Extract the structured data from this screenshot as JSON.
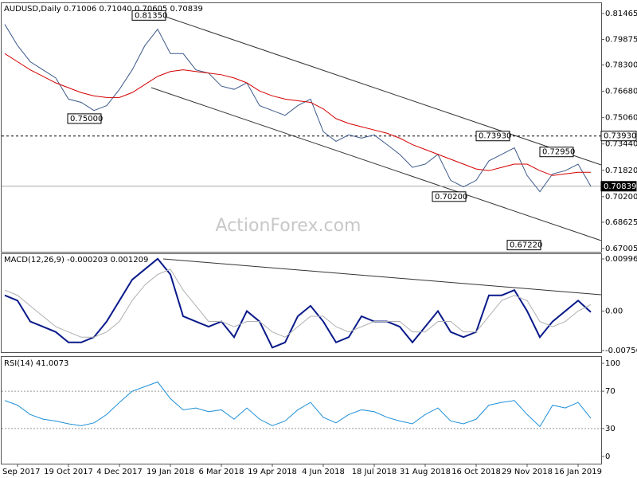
{
  "chart_data": [
    {
      "type": "line",
      "title": "AUDUSD,Daily  0.71006 0.71040 0.70605 0.70839",
      "watermark": "ActionForex.com",
      "categories": [
        null,
        "5 Sep 2017",
        null,
        null,
        null,
        "19 Oct 2017",
        null,
        null,
        null,
        "4 Dec 2017",
        null,
        null,
        null,
        "19 Jan 2018",
        null,
        null,
        null,
        "6 Mar 2018",
        null,
        null,
        null,
        "19 Apr 2018",
        null,
        null,
        null,
        "4 Jun 2018",
        null,
        null,
        null,
        "18 Jul 2018",
        null,
        null,
        null,
        "31 Aug 2018",
        null,
        null,
        null,
        "16 Oct 2018",
        null,
        null,
        null,
        "29 Nov 2018",
        null,
        null,
        null,
        "16 Jan 2019",
        null
      ],
      "series": [
        {
          "color": "#3d5a8a",
          "values": [
            0.808,
            0.795,
            0.785,
            0.78,
            0.775,
            0.762,
            0.76,
            0.755,
            0.758,
            0.768,
            0.78,
            0.795,
            0.805,
            0.79,
            0.79,
            0.78,
            0.778,
            0.77,
            0.768,
            0.772,
            0.758,
            0.755,
            0.752,
            0.758,
            0.762,
            0.742,
            0.736,
            0.74,
            0.738,
            0.74,
            0.734,
            0.728,
            0.72,
            0.722,
            0.728,
            0.712,
            0.708,
            0.712,
            0.724,
            0.728,
            0.732,
            0.715,
            0.705,
            0.716,
            0.718,
            0.722,
            0.70839
          ]
        },
        {
          "color": "#d40000",
          "values": [
            0.79,
            0.785,
            0.78,
            0.776,
            0.772,
            0.769,
            0.766,
            0.764,
            0.763,
            0.763,
            0.766,
            0.771,
            0.776,
            0.779,
            0.78,
            0.779,
            0.778,
            0.777,
            0.775,
            0.772,
            0.767,
            0.764,
            0.762,
            0.761,
            0.76,
            0.756,
            0.75,
            0.747,
            0.745,
            0.743,
            0.741,
            0.738,
            0.734,
            0.731,
            0.728,
            0.725,
            0.722,
            0.719,
            0.718,
            0.72,
            0.722,
            0.722,
            0.718,
            0.715,
            0.716,
            0.717,
            0.717
          ]
        }
      ],
      "ylim": [
        0.66809,
        0.82102
      ],
      "yticks": [
        0.81465,
        0.79875,
        {
          "value": 0.783,
          "label": "0.78300"
        },
        {
          "value": 0.7668,
          "label": "0.76680"
        },
        {
          "value": 0.7506,
          "label": "0.75060"
        },
        {
          "value": 0.7344,
          "label": "0.73440"
        },
        {
          "value": 0.7182,
          "label": "0.71820"
        },
        {
          "value": 0.702,
          "label": "0.70200"
        },
        0.68625,
        0.67005
      ],
      "hlines": [
        {
          "value": 0.7393,
          "label": "0.73930",
          "style": "dotted"
        },
        {
          "value": 0.70839,
          "label": "0.70839",
          "style": "solid"
        }
      ],
      "annotations": [
        {
          "value": 0.8135,
          "label": "0.81350"
        },
        {
          "value": 0.75,
          "label": "0.75000"
        },
        {
          "value": 0.7393,
          "label": "0.73930"
        },
        {
          "value": 0.7295,
          "label": "0.72950"
        },
        {
          "value": 0.702,
          "label": "0.70200"
        },
        {
          "value": 0.6722,
          "label": "0.67220"
        }
      ]
    },
    {
      "type": "line",
      "title": "MACD(12,26,9) -0.000203 0.001209",
      "series": [
        {
          "color": "#0a1a8a",
          "values": [
            0.003,
            0.002,
            -0.002,
            -0.003,
            -0.004,
            -0.006,
            -0.006,
            -0.005,
            -0.002,
            0.002,
            0.006,
            0.008,
            0.01,
            0.007,
            -0.001,
            -0.002,
            -0.003,
            -0.002,
            -0.005,
            0.0,
            -0.002,
            -0.007,
            -0.006,
            -0.001,
            0.001,
            -0.002,
            -0.006,
            -0.005,
            -0.001,
            -0.002,
            -0.002,
            -0.003,
            -0.006,
            -0.003,
            0.0,
            -0.004,
            -0.005,
            -0.004,
            0.003,
            0.003,
            0.004,
            0.0,
            -0.005,
            -0.002,
            0.0,
            0.002,
            -0.000203
          ]
        },
        {
          "color": "#b0b0b0",
          "values": [
            0.004,
            0.003,
            0.001,
            -0.001,
            -0.003,
            -0.004,
            -0.005,
            -0.005,
            -0.004,
            -0.002,
            0.002,
            0.005,
            0.007,
            0.008,
            0.004,
            0.001,
            -0.002,
            -0.002,
            -0.003,
            -0.002,
            -0.002,
            -0.004,
            -0.005,
            -0.003,
            -0.001,
            -0.001,
            -0.003,
            -0.004,
            -0.003,
            -0.002,
            -0.002,
            -0.002,
            -0.004,
            -0.004,
            -0.002,
            -0.002,
            -0.004,
            -0.004,
            -0.001,
            0.002,
            0.003,
            0.002,
            -0.002,
            -0.003,
            -0.002,
            0.0,
            0.001209
          ]
        }
      ],
      "ylim": [
        -0.00786,
        0.01073
      ],
      "yticks": [
        0.009964,
        {
          "value": 0,
          "label": "0.00"
        },
        -0.00756
      ]
    },
    {
      "type": "line",
      "title": "RSI(14) 41.0073",
      "series": [
        {
          "color": "#1e90d8",
          "values": [
            60,
            55,
            45,
            40,
            38,
            35,
            33,
            36,
            45,
            58,
            70,
            75,
            80,
            62,
            50,
            52,
            48,
            50,
            40,
            52,
            40,
            33,
            38,
            50,
            58,
            42,
            36,
            45,
            50,
            48,
            42,
            38,
            35,
            45,
            52,
            38,
            35,
            40,
            55,
            58,
            60,
            45,
            32,
            55,
            52,
            58,
            41.0073
          ]
        }
      ],
      "ylim": [
        -7.8,
        106
      ],
      "yticks": [
        0,
        30,
        70,
        100
      ],
      "levels": [
        30,
        70
      ]
    }
  ]
}
